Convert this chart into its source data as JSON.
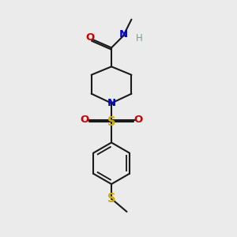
{
  "bg_color": "#ebebeb",
  "bond_color": "#1a1a1a",
  "bond_width": 1.5,
  "colors": {
    "N": "#0000cc",
    "O": "#cc0000",
    "S_sulfonyl": "#ccaa00",
    "S_thio": "#ccaa00",
    "H": "#7a9a9a",
    "C": "#1a1a1a"
  },
  "font_size": 9.5
}
